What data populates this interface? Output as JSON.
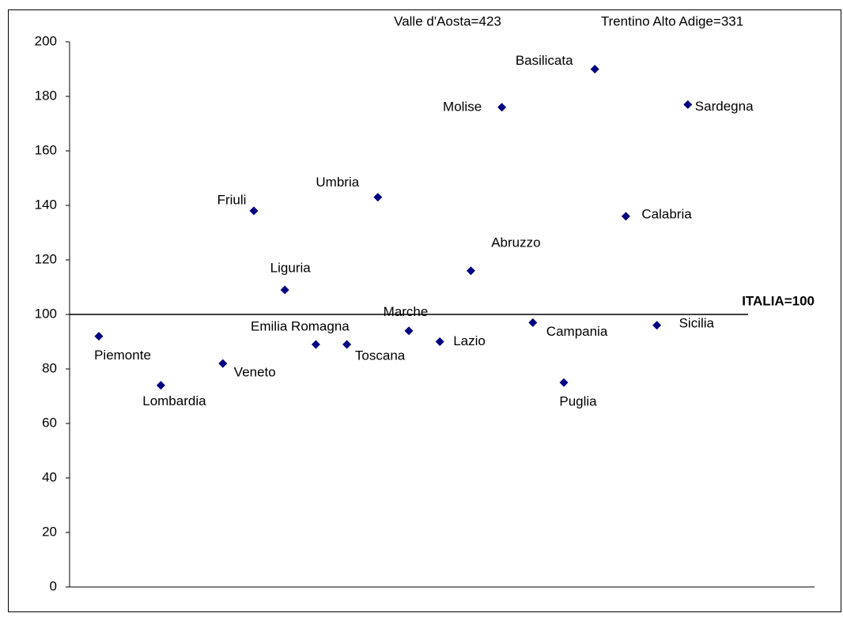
{
  "chart_data": {
    "type": "scatter",
    "categories": [
      "Piemonte",
      null,
      "Lombardia",
      null,
      "Veneto",
      "Friuli",
      "Liguria",
      "Emilia Romagna",
      "Toscana",
      "Umbria",
      "Marche",
      "Lazio",
      "Abruzzo",
      "Molise",
      "Campania",
      "Puglia",
      "Basilicata",
      "Calabria",
      "Sicilia",
      "Sardegna"
    ],
    "values": [
      92,
      null,
      74,
      null,
      82,
      138,
      109,
      89,
      89,
      143,
      94,
      90,
      116,
      176,
      97,
      75,
      190,
      136,
      96,
      177
    ],
    "color": "#000080",
    "ylim": [
      0,
      200
    ],
    "yticks": [
      0,
      20,
      40,
      60,
      80,
      100,
      120,
      140,
      160,
      180,
      200
    ],
    "reference_line": {
      "value": 100,
      "label": "ITALIA=100"
    },
    "annotations": [
      "Valle d'Aosta=423",
      "Trentino Alto Adige=331"
    ]
  }
}
